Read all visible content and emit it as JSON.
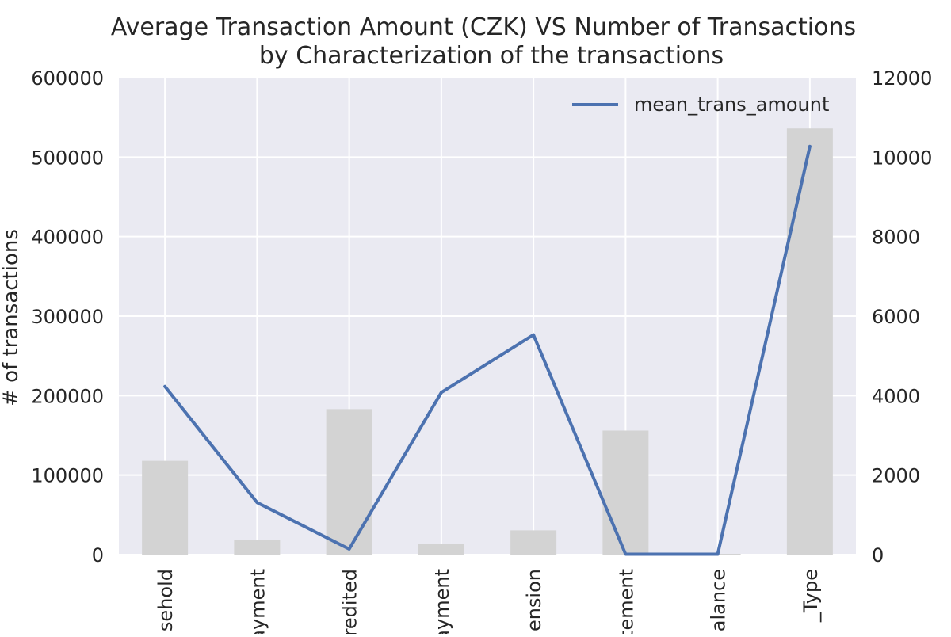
{
  "chart_data": {
    "type": "bar",
    "title": "Average Transaction Amount (CZK) VS Number of Transactions",
    "subtitle": "by Characterization of the transactions",
    "ylabel": "# of transactions",
    "ylabel_right": "mean_trans_amount",
    "categories": [
      "sehold",
      "ayment",
      "redited",
      "ayment",
      "ension",
      "tement",
      "alance",
      "_Type"
    ],
    "ylim": [
      0,
      600000
    ],
    "y2lim": [
      0,
      12000
    ],
    "yticks": [
      "0",
      "100000",
      "200000",
      "300000",
      "400000",
      "500000",
      "600000"
    ],
    "y2ticks": [
      "0",
      "2000",
      "4000",
      "6000",
      "8000",
      "10000",
      "12000"
    ],
    "grid": true,
    "legend_position": "top-right",
    "series": [
      {
        "type": "bar",
        "axis": "left",
        "color": "#d3d3d3",
        "values": [
          118000,
          18500,
          183000,
          13500,
          30500,
          156000,
          1000,
          536000
        ]
      },
      {
        "type": "line",
        "axis": "right",
        "name": "mean_trans_amount",
        "color": "#4c72b0",
        "values": [
          4230,
          1310,
          140,
          4080,
          5530,
          10,
          10,
          10270
        ]
      }
    ],
    "background_color": "#eaeaf2"
  }
}
